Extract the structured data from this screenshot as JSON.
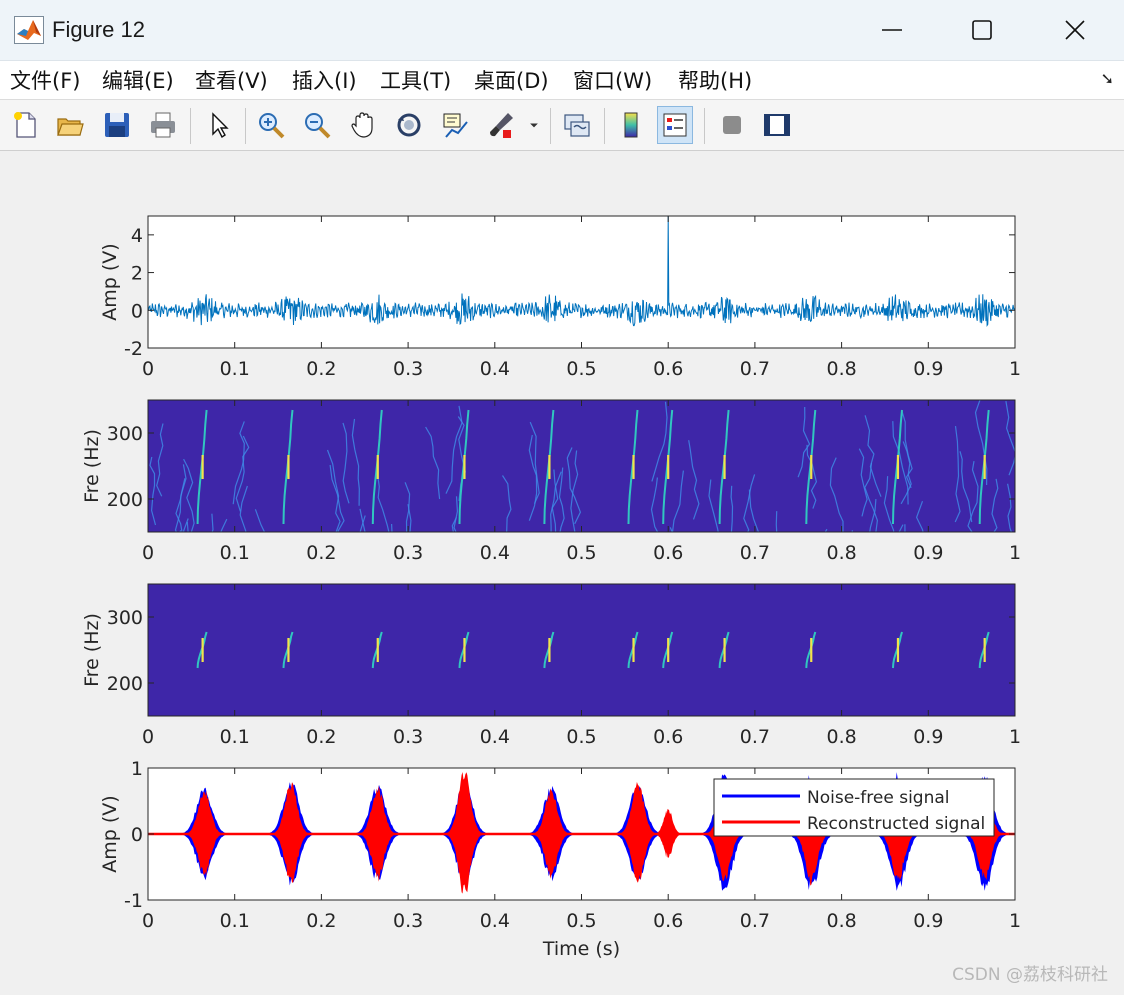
{
  "window": {
    "title": "Figure 12"
  },
  "menu": [
    "文件(F)",
    "编辑(E)",
    "查看(V)",
    "插入(I)",
    "工具(T)",
    "桌面(D)",
    "窗口(W)",
    "帮助(H)"
  ],
  "toolbar_icons": [
    "new-figure-icon",
    "open-file-icon",
    "save-icon",
    "print-icon",
    "pointer-icon",
    "zoom-in-icon",
    "zoom-out-icon",
    "pan-hand-icon",
    "rotate-3d-icon",
    "data-cursor-icon",
    "brush-icon",
    "link-plot-icon",
    "colorbar-icon",
    "legend-icon",
    "hide-plot-tools-icon",
    "show-plot-tools-icon"
  ],
  "colors": {
    "signal_line": "#0072bd",
    "tf_background": "#3e26a8",
    "noise_free": "#0000ff",
    "reconstructed": "#ff0000"
  },
  "watermark": "CSDN @荔枝科研社",
  "chart_data": [
    {
      "type": "line",
      "ylabel": "Amp (V)",
      "xlim": [
        0,
        1
      ],
      "ylim": [
        -2,
        5
      ],
      "xticks": [
        "0",
        "0.1",
        "0.2",
        "0.3",
        "0.4",
        "0.5",
        "0.6",
        "0.7",
        "0.8",
        "0.9",
        "1"
      ],
      "yticks": [
        "-2",
        "0",
        "2",
        "4"
      ],
      "grid": false,
      "series": [
        {
          "values_desc": "noisy oscillation about 0 with amplitude near 0.5 V, bursts every 0.1 s, one spike to 5 V at t = 0.6 s",
          "burst_centers": [
            0.065,
            0.165,
            0.265,
            0.365,
            0.465,
            0.565,
            0.665,
            0.765,
            0.865,
            0.965
          ],
          "spike": {
            "x": 0.6,
            "y": 5
          }
        }
      ]
    },
    {
      "type": "heatmap",
      "ylabel": "Fre (Hz)",
      "xlim": [
        0,
        1
      ],
      "ylim": [
        150,
        350
      ],
      "xticks": [
        "0",
        "0.1",
        "0.2",
        "0.3",
        "0.4",
        "0.5",
        "0.6",
        "0.7",
        "0.8",
        "0.9",
        "1"
      ],
      "yticks": [
        "200",
        "300"
      ],
      "ridges_x": [
        0.063,
        0.162,
        0.265,
        0.365,
        0.463,
        0.56,
        0.6,
        0.665,
        0.765,
        0.865,
        0.965
      ]
    },
    {
      "type": "heatmap",
      "ylabel": "Fre (Hz)",
      "xlim": [
        0,
        1
      ],
      "ylim": [
        150,
        350
      ],
      "xticks": [
        "0",
        "0.1",
        "0.2",
        "0.3",
        "0.4",
        "0.5",
        "0.6",
        "0.7",
        "0.8",
        "0.9",
        "1"
      ],
      "yticks": [
        "200",
        "300"
      ],
      "ridges_x": [
        0.063,
        0.162,
        0.265,
        0.365,
        0.463,
        0.56,
        0.6,
        0.665,
        0.765,
        0.865,
        0.965
      ]
    },
    {
      "type": "line",
      "xlabel": "Time (s)",
      "ylabel": "Amp (V)",
      "xlim": [
        0,
        1
      ],
      "ylim": [
        -1,
        1
      ],
      "xticks": [
        "0",
        "0.1",
        "0.2",
        "0.3",
        "0.4",
        "0.5",
        "0.6",
        "0.7",
        "0.8",
        "0.9",
        "1"
      ],
      "yticks": [
        "-1",
        "0",
        "1"
      ],
      "legend": "top-right",
      "series": [
        {
          "name": "Noise-free signal",
          "bursts": [
            {
              "x": 0.065,
              "amp": 0.72
            },
            {
              "x": 0.165,
              "amp": 0.85
            },
            {
              "x": 0.265,
              "amp": 0.77
            },
            {
              "x": 0.365,
              "amp": 0.85
            },
            {
              "x": 0.465,
              "amp": 0.74
            },
            {
              "x": 0.565,
              "amp": 0.83
            },
            {
              "x": 0.665,
              "amp": 0.95
            },
            {
              "x": 0.765,
              "amp": 0.95
            },
            {
              "x": 0.865,
              "amp": 0.95
            },
            {
              "x": 0.965,
              "amp": 0.95
            }
          ]
        },
        {
          "name": "Reconstructed signal",
          "bursts": [
            {
              "x": 0.065,
              "amp": 0.7
            },
            {
              "x": 0.165,
              "amp": 0.82
            },
            {
              "x": 0.265,
              "amp": 0.74
            },
            {
              "x": 0.365,
              "amp": 1.0
            },
            {
              "x": 0.465,
              "amp": 0.7
            },
            {
              "x": 0.565,
              "amp": 0.8
            },
            {
              "x": 0.6,
              "amp": 0.4
            },
            {
              "x": 0.665,
              "amp": 0.8
            },
            {
              "x": 0.765,
              "amp": 0.8
            },
            {
              "x": 0.865,
              "amp": 0.8
            },
            {
              "x": 0.965,
              "amp": 0.75
            }
          ]
        }
      ]
    }
  ]
}
